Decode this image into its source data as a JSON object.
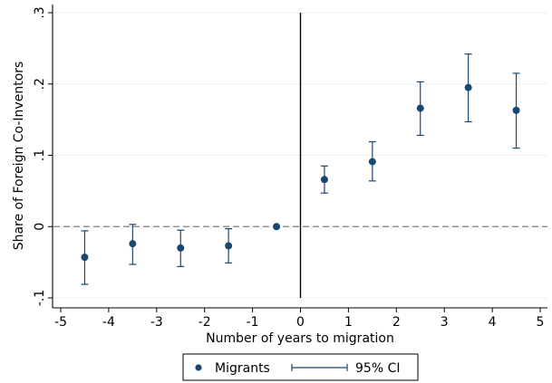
{
  "chart_data": {
    "type": "scatter",
    "xlabel": "Number of years to migration",
    "ylabel": "Share of Foreign Co-Inventors",
    "xlim": [
      -5,
      5
    ],
    "ylim": [
      -0.1,
      0.3
    ],
    "x_ticks": [
      -5,
      -4,
      -3,
      -2,
      -1,
      0,
      1,
      2,
      3,
      4,
      5
    ],
    "x_tick_labels": [
      "-5",
      "-4",
      "-3",
      "-2",
      "-1",
      "0",
      "1",
      "2",
      "3",
      "4",
      "5"
    ],
    "y_ticks": [
      -0.1,
      0,
      0.1,
      0.2,
      0.3
    ],
    "y_tick_labels": [
      "-.1",
      "0",
      ".1",
      ".2",
      ".3"
    ],
    "grid": true,
    "reference_lines": {
      "vertical_x": 0,
      "horizontal_dashed_y": 0
    },
    "series": [
      {
        "name": "Migrants",
        "x": [
          -4.5,
          -3.5,
          -2.5,
          -1.5,
          -0.5,
          0.5,
          1.5,
          2.5,
          3.5,
          4.5
        ],
        "y": [
          -0.043,
          -0.024,
          -0.03,
          -0.027,
          0.0,
          0.066,
          0.091,
          0.166,
          0.195,
          0.163
        ],
        "ci_low": [
          -0.081,
          -0.053,
          -0.056,
          -0.051,
          null,
          0.047,
          0.064,
          0.128,
          0.147,
          0.11
        ],
        "ci_high": [
          -0.006,
          0.003,
          -0.005,
          -0.003,
          null,
          0.085,
          0.119,
          0.203,
          0.242,
          0.215
        ]
      }
    ],
    "legend": {
      "position": "bottom",
      "items": [
        "Migrants",
        "95% CI"
      ]
    }
  },
  "colors": {
    "marker": "#1a476f",
    "ci": "#1a476f",
    "grid": "#eaf2f3",
    "axis": "#000000",
    "reference": "#000000",
    "dashed": "#7f7f7f"
  }
}
